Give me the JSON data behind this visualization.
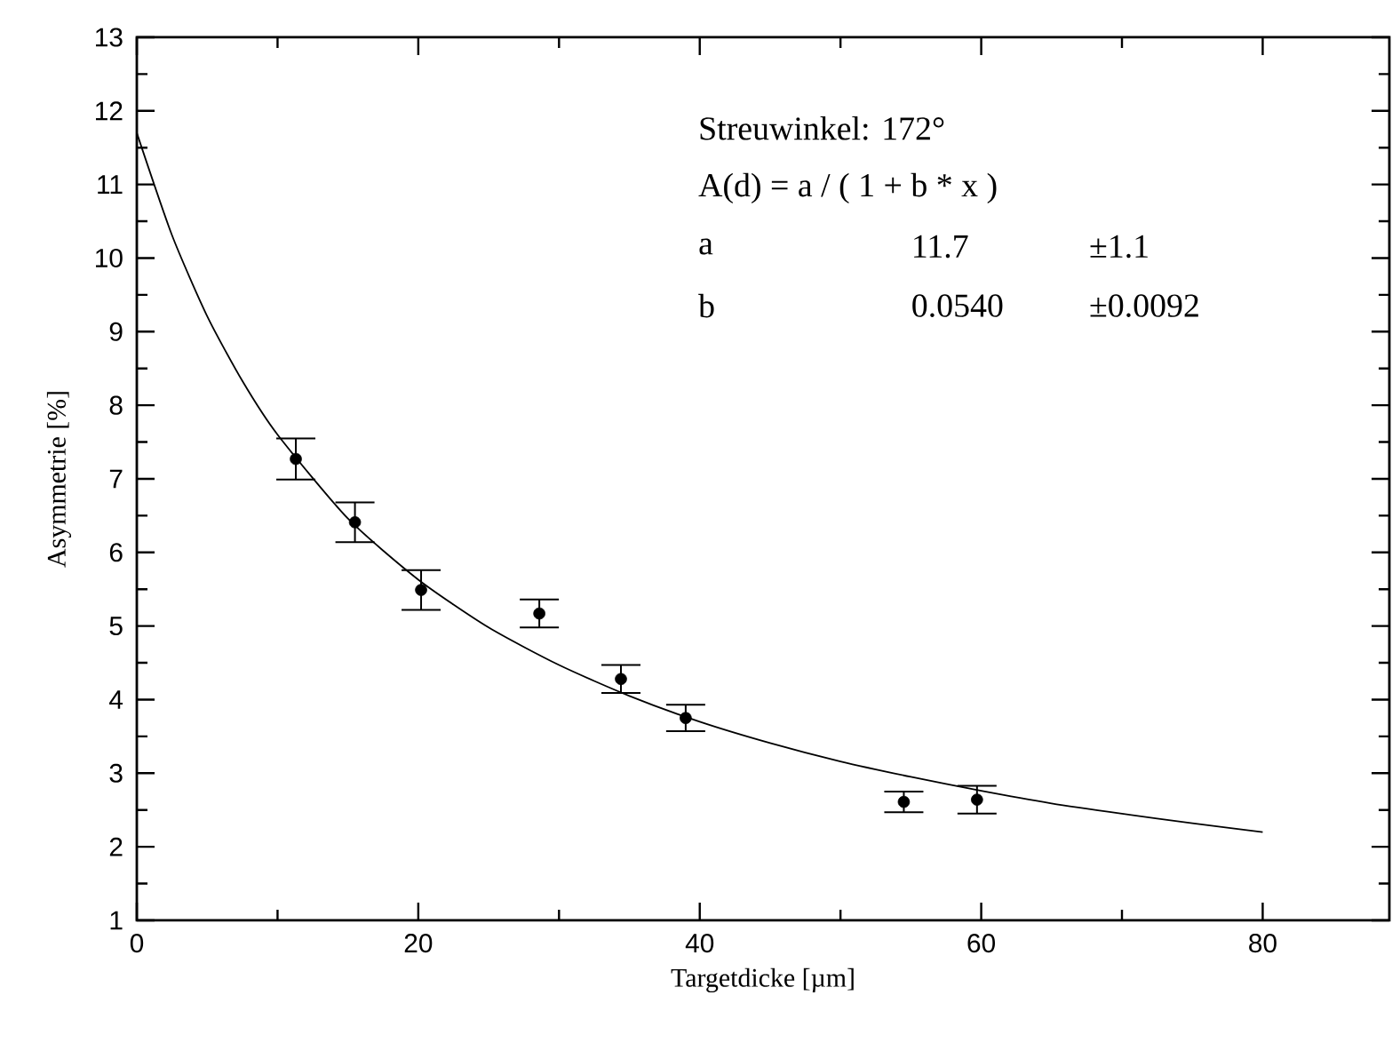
{
  "chart_data": {
    "type": "scatter",
    "xlabel": "Targetdicke [µm]",
    "ylabel": "Asymmetrie [%]",
    "annotations": [
      "Streuwinkel: 172°",
      "A(d) = a / ( 1 + b * x )",
      "a",
      "11.7",
      "±1.1",
      "b",
      "0.0540",
      "±0.0092"
    ],
    "xlim": [
      0,
      89
    ],
    "ylim": [
      1,
      13
    ],
    "xticks": [
      0,
      20,
      40,
      60,
      80
    ],
    "yticks": [
      1,
      2,
      3,
      4,
      5,
      6,
      7,
      8,
      9,
      10,
      11,
      12,
      13
    ],
    "grid": false,
    "series": [
      {
        "type": "scatter",
        "marker": "circle",
        "color": "#000000",
        "x": [
          11.3,
          15.5,
          20.2,
          28.6,
          34.4,
          39.0,
          54.5,
          59.7
        ],
        "values": [
          7.27,
          6.41,
          5.49,
          5.17,
          4.28,
          3.75,
          2.61,
          2.64
        ],
        "errors": [
          0.28,
          0.27,
          0.27,
          0.19,
          0.19,
          0.18,
          0.14,
          0.19
        ]
      },
      {
        "type": "line",
        "color": "#000000",
        "marker": "none",
        "line_style": "solid",
        "x": [
          0,
          2.5,
          5,
          7.5,
          10,
          15,
          20,
          25,
          30,
          35,
          40,
          45,
          50,
          55,
          60,
          65,
          70,
          75,
          80
        ],
        "values": [
          11.7,
          10.31,
          9.21,
          8.33,
          7.6,
          6.46,
          5.63,
          4.98,
          4.47,
          4.05,
          3.7,
          3.41,
          3.16,
          2.95,
          2.76,
          2.59,
          2.45,
          2.32,
          2.2
        ]
      }
    ]
  }
}
